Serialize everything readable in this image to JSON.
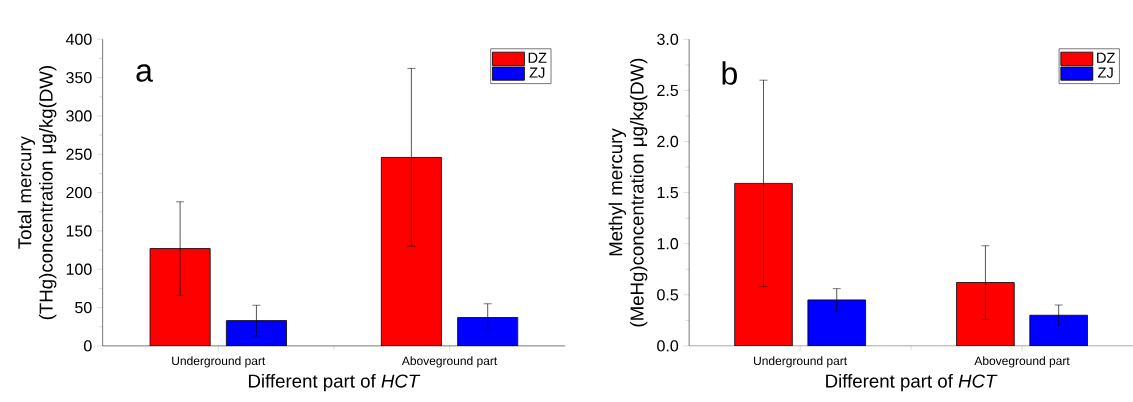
{
  "chart_data": [
    {
      "type": "bar",
      "categories": [
        "Underground part",
        "Aboveground part"
      ],
      "series": [
        {
          "name": "DZ",
          "color": "#ff0000",
          "values": [
            127,
            246
          ],
          "errors": [
            61,
            116
          ]
        },
        {
          "name": "ZJ",
          "color": "#0000ff",
          "values": [
            33,
            37
          ],
          "errors": [
            20,
            18
          ]
        }
      ],
      "xlabel": "Different part of *HCT*",
      "ylabel": "Total mercury (THg)concentration μg/kg(DW)",
      "ylim": [
        0,
        400
      ],
      "yticks": [
        0,
        50,
        100,
        150,
        200,
        250,
        300,
        350,
        400
      ],
      "legend": "top right",
      "annotations": [
        "a"
      ]
    },
    {
      "type": "bar",
      "categories": [
        "Underground part",
        "Aboveground part"
      ],
      "series": [
        {
          "name": "DZ",
          "color": "#ff0000",
          "values": [
            1.59,
            0.62
          ],
          "errors": [
            1.01,
            0.36
          ]
        },
        {
          "name": "ZJ",
          "color": "#0000ff",
          "values": [
            0.45,
            0.3
          ],
          "errors": [
            0.11,
            0.1
          ]
        }
      ],
      "xlabel": "Different part of *HCT*",
      "ylabel": "Methyl mercury (MeHg)concentration μg/kg(DW)",
      "ylim": [
        0,
        3.0
      ],
      "yticks": [
        {
          "value": 0,
          "label": "0.0"
        },
        {
          "value": 0.5,
          "label": "0.5"
        },
        {
          "value": 1.0,
          "label": "1.0"
        },
        {
          "value": 1.5,
          "label": "1.5"
        },
        {
          "value": 2.0,
          "label": "2.0"
        },
        {
          "value": 2.5,
          "label": "2.5"
        },
        {
          "value": 3.0,
          "label": "3.0"
        }
      ],
      "legend": "top right",
      "annotations": [
        "b"
      ]
    }
  ]
}
